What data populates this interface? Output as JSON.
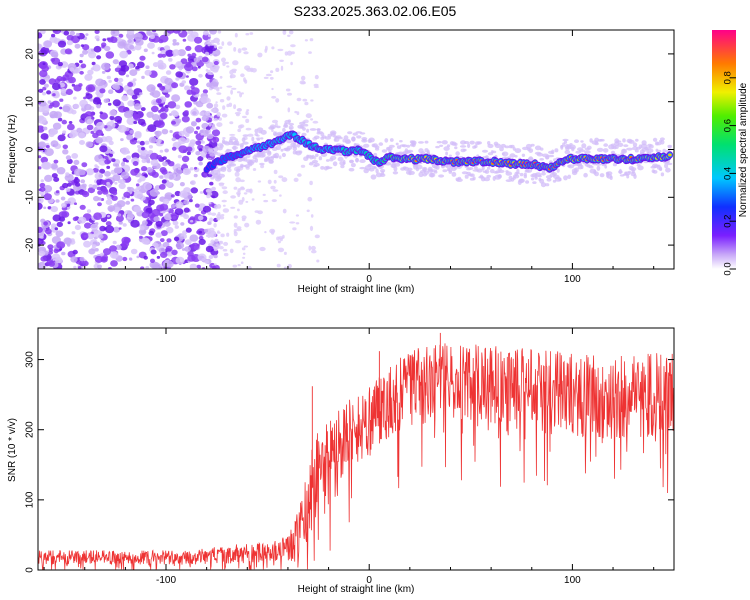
{
  "figure": {
    "title": "S233.2025.363.02.06.E05",
    "accent_color": "#ee3333",
    "spectrogram_band_color": "#7a1fff"
  },
  "chart_data": [
    {
      "type": "heatmap",
      "title": "",
      "xlabel": "Height of straight line (km)",
      "ylabel": "Frequency (Hz)",
      "xlim": [
        -163,
        150
      ],
      "ylim": [
        -25,
        25
      ],
      "xticks": [
        -100,
        0,
        100
      ],
      "yticks": [
        -20,
        -10,
        0,
        10,
        20
      ],
      "colorbar": {
        "label": "Normalized spectral amplitude",
        "range": [
          0,
          1
        ],
        "ticks": [
          "0.0",
          "0.2",
          "0.4",
          "0.6",
          "0.8"
        ],
        "colormap": "rainbow"
      },
      "ridge": {
        "x": [
          -80,
          -72,
          -65,
          -58,
          -50,
          -44,
          -38,
          -33,
          -28,
          -22,
          -16,
          -10,
          -5,
          0,
          5,
          10,
          20,
          30,
          40,
          50,
          60,
          70,
          80,
          85,
          88,
          92,
          96,
          100,
          110,
          120,
          130,
          140,
          148
        ],
        "freq": [
          -4,
          -2,
          -1,
          0,
          1,
          2,
          3,
          2,
          0.5,
          0,
          0,
          -0.5,
          0,
          -1.5,
          -3,
          -1.5,
          -2,
          -2,
          -2.5,
          -2.5,
          -2.5,
          -3,
          -3,
          -3.5,
          -4,
          -3.5,
          -2,
          -2,
          -2,
          -2,
          -2,
          -1.5,
          -1.5
        ],
        "amplitude": [
          0.25,
          0.3,
          0.3,
          0.35,
          0.4,
          0.45,
          0.45,
          0.45,
          0.45,
          0.45,
          0.45,
          0.5,
          0.5,
          0.55,
          0.55,
          0.7,
          0.85,
          0.85,
          0.9,
          0.95,
          0.9,
          0.9,
          0.95,
          0.95,
          0.95,
          0.95,
          0.9,
          0.85,
          0.9,
          0.95,
          0.9,
          0.85,
          0.8
        ]
      },
      "noise_region": {
        "x_range": [
          -163,
          -75
        ],
        "freq_range": [
          -25,
          25
        ],
        "amplitude": 0.2
      }
    },
    {
      "type": "line",
      "title": "",
      "xlabel": "Height of straight line (km)",
      "ylabel": "SNR (10 * v/v)",
      "xlim": [
        -163,
        150
      ],
      "ylim": [
        0,
        345
      ],
      "xticks": [
        -100,
        0,
        100
      ],
      "yticks": [
        0,
        100,
        200,
        300
      ],
      "series": [
        {
          "name": "SNR",
          "color": "#ee3333",
          "envelope": {
            "x": [
              -163,
              -140,
              -120,
              -100,
              -90,
              -80,
              -70,
              -60,
              -50,
              -40,
              -35,
              -30,
              -27,
              -20,
              -10,
              0,
              10,
              20,
              30,
              40,
              60,
              80,
              100,
              120,
              140,
              150
            ],
            "mean": [
              18,
              18,
              18,
              18,
              18,
              20,
              22,
              24,
              26,
              30,
              45,
              90,
              130,
              160,
              195,
              210,
              240,
              260,
              265,
              270,
              265,
              255,
              250,
              245,
              250,
              250
            ],
            "spread": [
              10,
              10,
              10,
              10,
              10,
              12,
              14,
              14,
              15,
              20,
              40,
              55,
              60,
              55,
              50,
              50,
              50,
              55,
              55,
              55,
              55,
              60,
              60,
              60,
              60,
              60
            ]
          },
          "peaks": [
            {
              "x": -28,
              "y": 262
            },
            {
              "x": 5,
              "y": 312
            },
            {
              "x": 35,
              "y": 338
            }
          ]
        }
      ]
    }
  ]
}
